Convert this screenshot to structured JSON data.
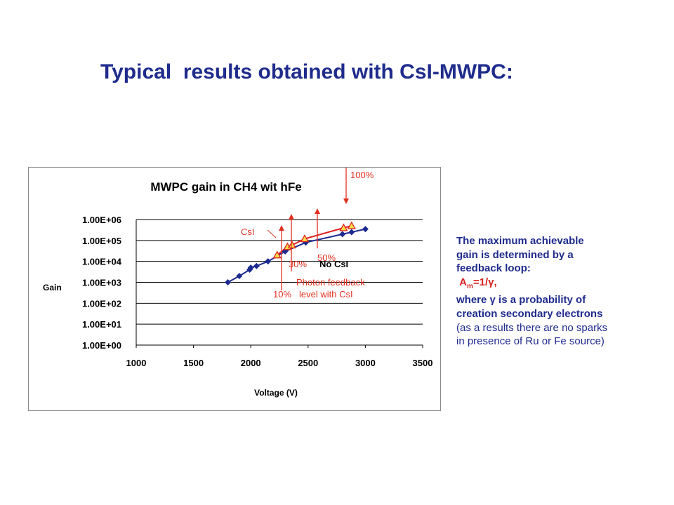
{
  "slide": {
    "title": "Typical  results obtained with CsI-MWPC:"
  },
  "notes": {
    "line1": "The maximum achievable",
    "line2": "gain is determined by a",
    "line3": "feedback loop:",
    "formula_A": "A",
    "formula_sub": "m",
    "formula_rest": "=1/γ,",
    "line5": "where γ is a probability of",
    "line6": "creation secondary electrons",
    "line7": "(as a results there are no sparks",
    "line8": " in presence of Ru or Fe source)"
  },
  "colors": {
    "title": "#1f2c8c",
    "no_csi_series": "#1c2a8f",
    "csi_series": "#e02020",
    "csi_marker_fill": "#f4e04a",
    "annotation": "#e03020"
  },
  "chart_data": {
    "type": "line",
    "title": "MWPC gain in CH4 wit hFe",
    "xlabel": "Voltage (V)",
    "ylabel": "Gain",
    "x_ticks": [
      "1000",
      "1500",
      "2000",
      "2500",
      "3000",
      "3500"
    ],
    "y_ticks": [
      "1.00E+00",
      "1.00E+01",
      "1.00E+02",
      "1.00E+03",
      "1.00E+04",
      "1.00E+05",
      "1.00E+06"
    ],
    "xlim": [
      1000,
      3500
    ],
    "ylim": [
      1,
      1000000
    ],
    "y_scale": "log",
    "grid": "horizontal",
    "series": [
      {
        "name": "No CsI",
        "marker": "diamond",
        "x": [
          1800,
          1900,
          1990,
          2000,
          2050,
          2150,
          2300,
          2480,
          2800,
          2880,
          3000
        ],
        "y": [
          1000,
          2000,
          4000,
          5000,
          6000,
          10000,
          30000,
          80000,
          200000,
          250000,
          350000
        ]
      },
      {
        "name": "CsI",
        "marker": "triangle",
        "x": [
          2230,
          2320,
          2360,
          2470,
          2810,
          2880
        ],
        "y": [
          20000,
          50000,
          60000,
          120000,
          400000,
          500000
        ]
      }
    ],
    "annotations": [
      {
        "text": "CsI"
      },
      {
        "text": "No CsI"
      },
      {
        "text": "100%"
      },
      {
        "text": "50%"
      },
      {
        "text": "30%"
      },
      {
        "text": "10%"
      },
      {
        "text": "Photon feedback"
      },
      {
        "text": "level with CsI"
      }
    ]
  }
}
